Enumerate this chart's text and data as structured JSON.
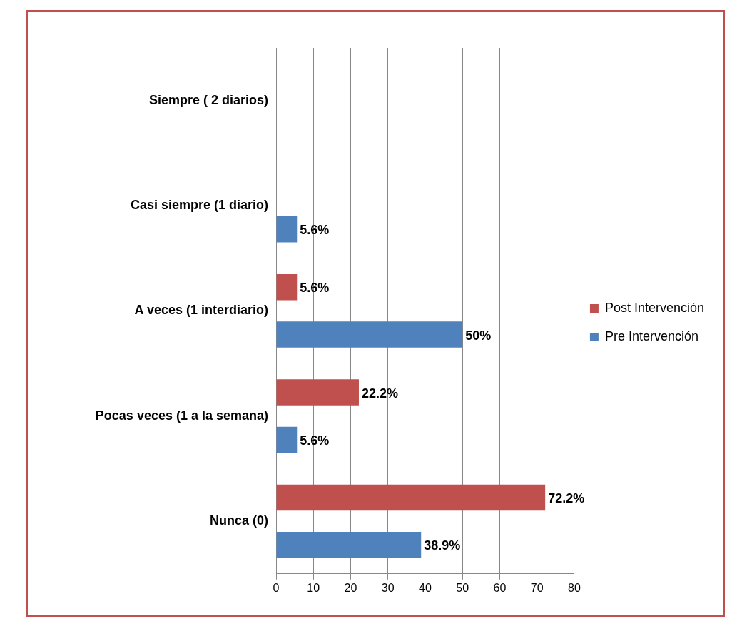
{
  "chart_data": {
    "type": "bar",
    "orientation": "horizontal",
    "categories": [
      "Siempre ( 2 diarios)",
      "Casi siempre (1 diario)",
      "A veces (1 interdiario)",
      "Pocas veces (1 a la semana)",
      "Nunca (0)"
    ],
    "series": [
      {
        "name": "Post Intervención",
        "color": "#c0504d",
        "values": [
          null,
          null,
          5.6,
          22.2,
          72.2
        ],
        "value_labels": [
          null,
          null,
          "5.6%",
          "22.2%",
          "72.2%"
        ]
      },
      {
        "name": "Pre Intervención",
        "color": "#4f81bd",
        "values": [
          null,
          5.6,
          50,
          5.6,
          38.9
        ],
        "value_labels": [
          null,
          "5.6%",
          "50%",
          "5.6%",
          "38.9%"
        ]
      }
    ],
    "xlim": [
      0,
      80
    ],
    "xticks": [
      0,
      10,
      20,
      30,
      40,
      50,
      60,
      70,
      80
    ],
    "grid": "x",
    "legend": "right"
  }
}
